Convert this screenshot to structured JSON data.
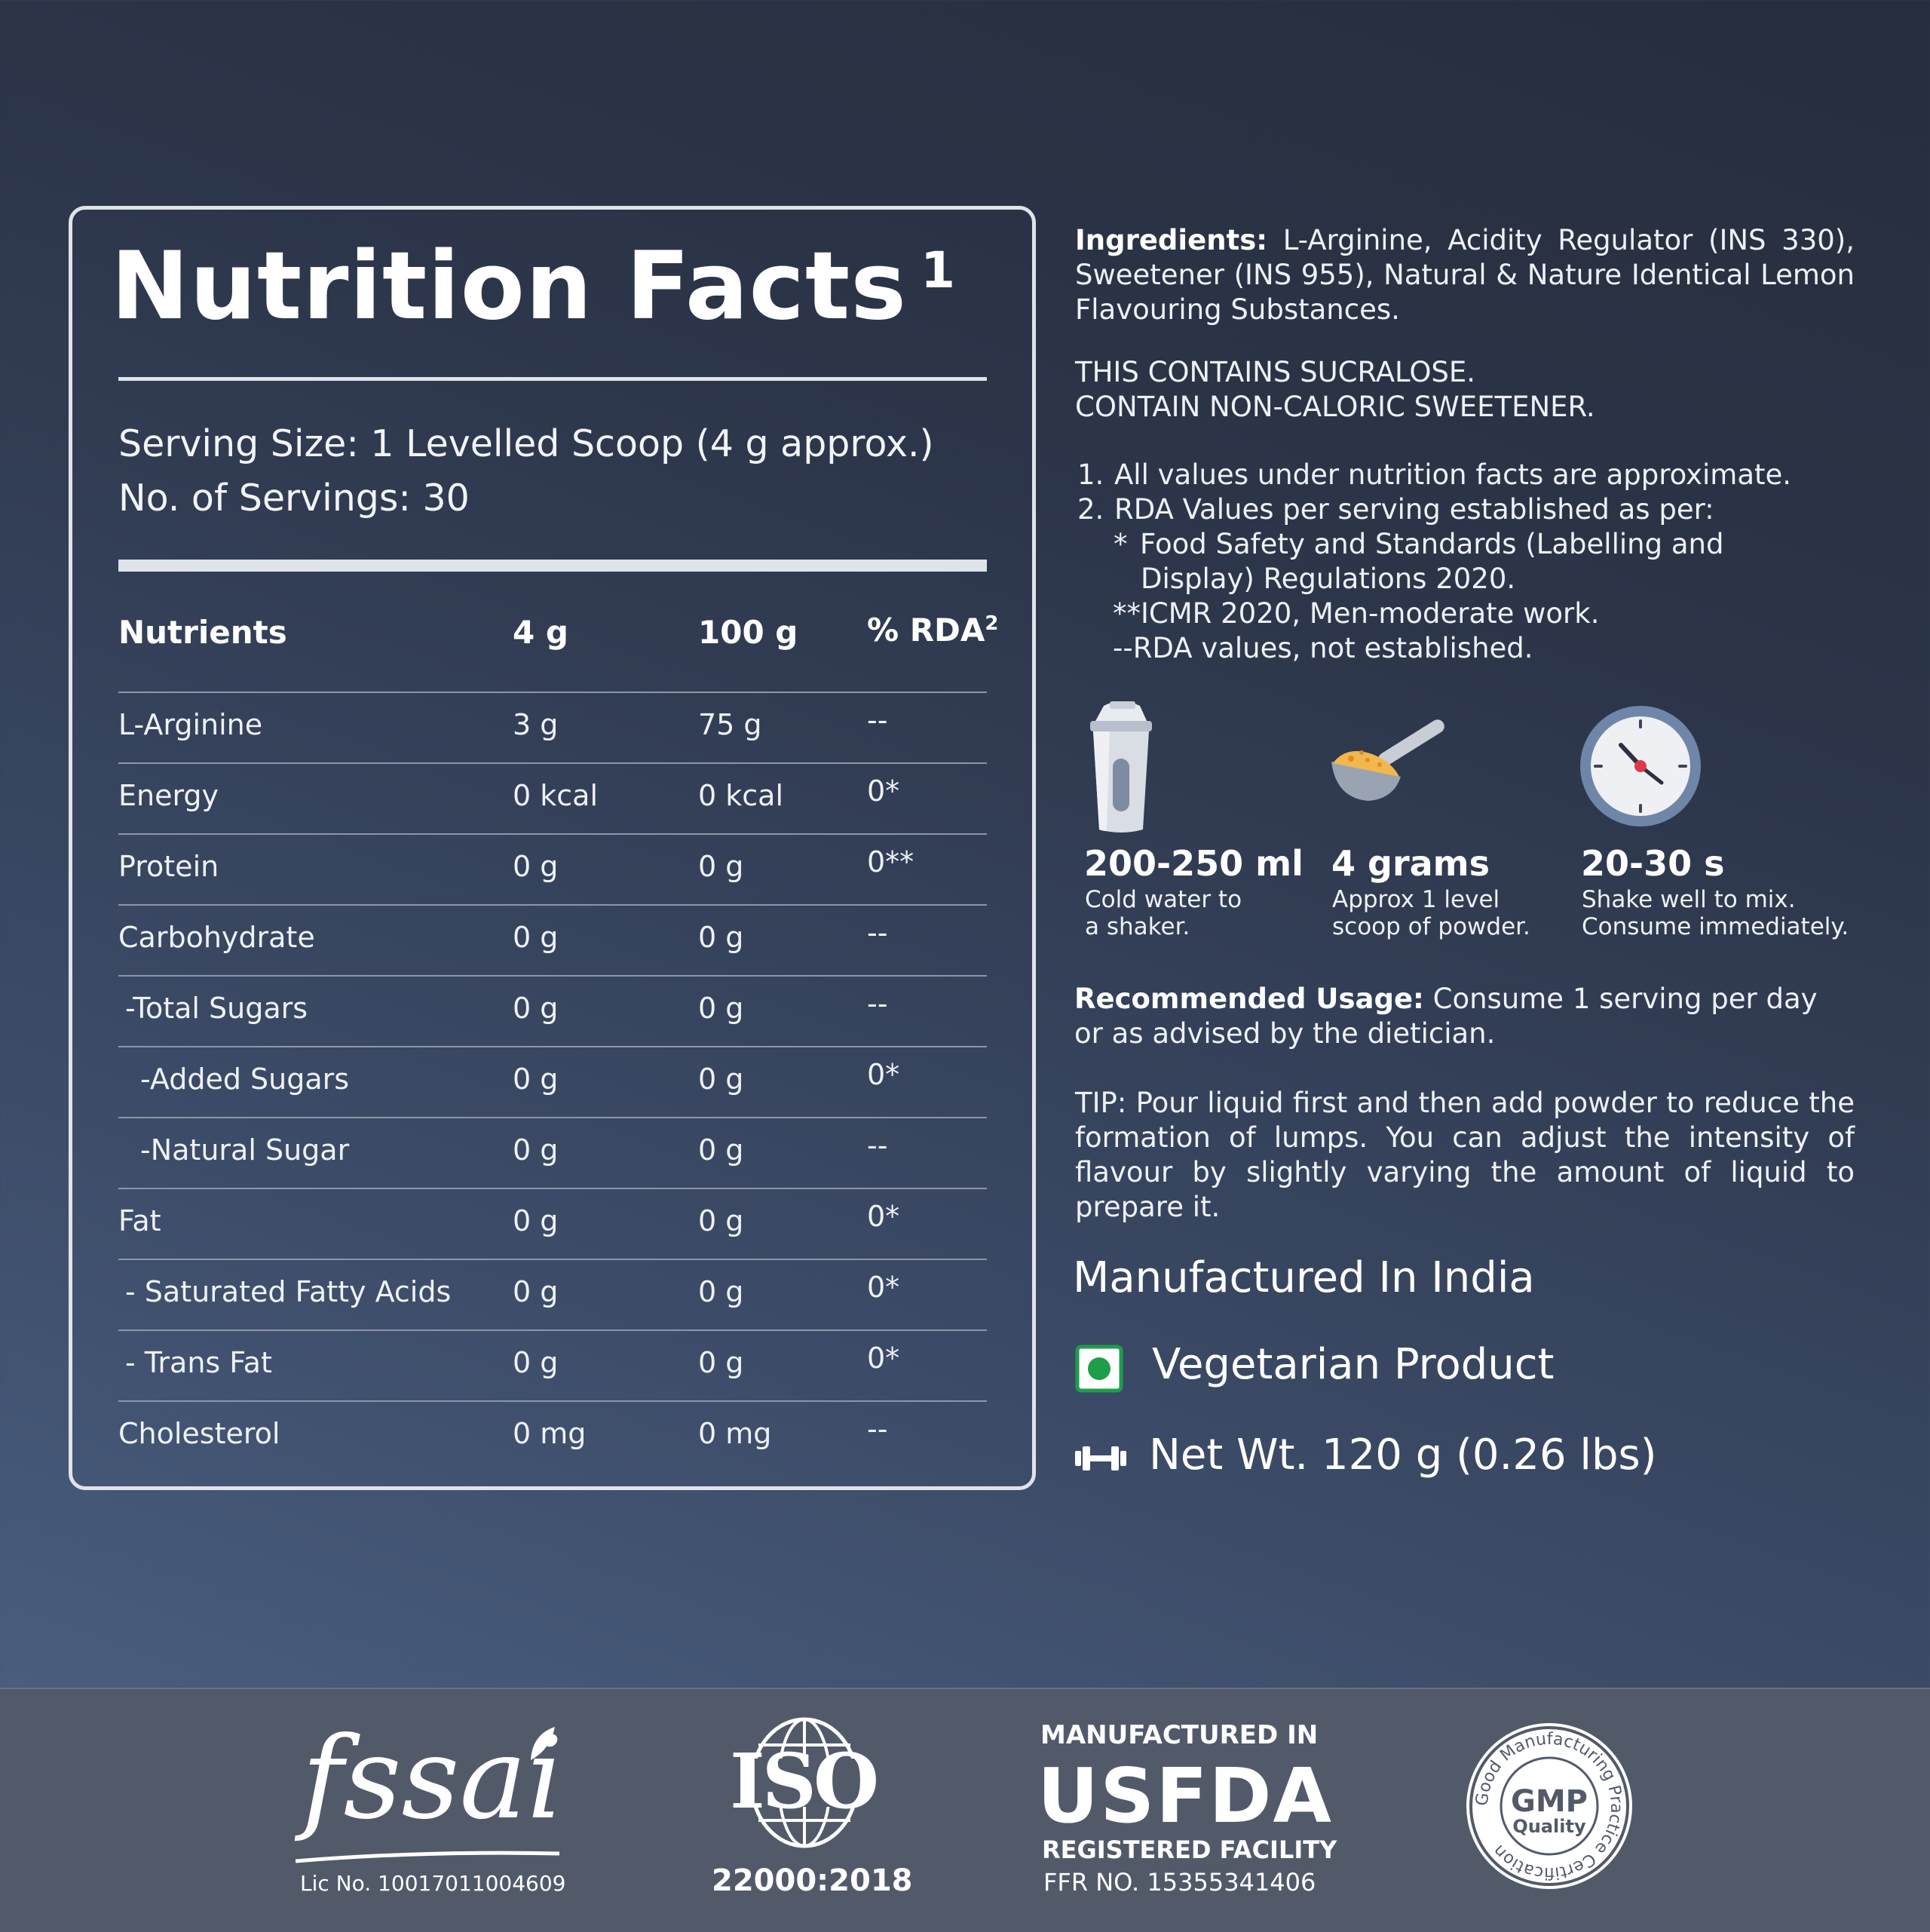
{
  "nutrition": {
    "title": "Nutrition Facts",
    "title_sup": "1",
    "serving_size": "Serving Size: 1 Levelled Scoop (4 g approx.)",
    "servings": "No. of Servings: 30",
    "headers": {
      "nutrient": "Nutrients",
      "per_4g": "4 g",
      "per_100g": "100 g",
      "rda": "% RDA",
      "rda_sup": "2"
    },
    "rows": [
      {
        "name": "L-Arginine",
        "g4": "3 g",
        "g100": "75 g",
        "rda": "--"
      },
      {
        "name": "Energy",
        "g4": "0 kcal",
        "g100": "0 kcal",
        "rda": "0*"
      },
      {
        "name": "Protein",
        "g4": "0 g",
        "g100": "0 g",
        "rda": "0**"
      },
      {
        "name": "Carbohydrate",
        "g4": "0 g",
        "g100": "0 g",
        "rda": "--"
      },
      {
        "name": "-Total Sugars",
        "g4": "0 g",
        "g100": "0 g",
        "rda": "--"
      },
      {
        "name": "-Added Sugars",
        "g4": "0 g",
        "g100": "0 g",
        "rda": "0*"
      },
      {
        "name": "-Natural Sugar",
        "g4": "0 g",
        "g100": "0 g",
        "rda": "--"
      },
      {
        "name": "Fat",
        "g4": "0 g",
        "g100": "0 g",
        "rda": "0*"
      },
      {
        "name": "- Saturated Fatty Acids",
        "g4": "0 g",
        "g100": "0 g",
        "rda": "0*"
      },
      {
        "name": "- Trans Fat",
        "g4": "0 g",
        "g100": "0 g",
        "rda": "0*"
      },
      {
        "name": "Cholesterol",
        "g4": "0 mg",
        "g100": "0 mg",
        "rda": "--"
      }
    ]
  },
  "info": {
    "ingredients_label": "Ingredients:",
    "ingredients_text": "L-Arginine, Acidity Regulator (INS 330), Sweetener (INS 955), Natural & Nature Identical Lemon Flavouring Substances.",
    "warning_1": "THIS CONTAINS SUCRALOSE.",
    "warning_2": "CONTAIN NON-CALORIC SWEETENER.",
    "notes": [
      {
        "num": "1.",
        "text": "All values under nutrition facts  are approximate."
      },
      {
        "num": "2.",
        "text": "RDA Values per serving established as per:"
      }
    ],
    "sub_note_star": "*",
    "sub_note_1a": "Food Safety and Standards (Labelling and",
    "sub_note_1b": "Display) Regulations 2020.",
    "sub_note_2": "**ICMR 2020, Men-moderate work.",
    "sub_note_3": "--RDA values, not established.",
    "steps": [
      {
        "value": "200-250 ml",
        "line1": "Cold water to",
        "line2": "a shaker."
      },
      {
        "value": "4 grams",
        "line1": "Approx 1 level",
        "line2": "scoop of powder."
      },
      {
        "value": "20-30 s",
        "line1": "Shake well to mix.",
        "line2": "Consume immediately."
      }
    ],
    "usage_label": "Recommended Usage:",
    "usage_text": "Consume 1 serving per day or as advised by the dietician.",
    "tip": "TIP: Pour liquid first and then add powder to reduce the formation of lumps. You can adjust the intensity of flavour by slightly varying the amount of liquid to prepare it.",
    "made_in": "Manufactured In India",
    "veg": "Vegetarian Product",
    "net_wt": "Net Wt. 120 g (0.26 lbs)"
  },
  "footer": {
    "fssai_logo": "fssai",
    "fssai_lic": "Lic No. 10017011004609",
    "iso_logo": "ISO",
    "iso_code": "22000:2018",
    "usfda_top": "MANUFACTURED IN",
    "usfda_main": "USFDA",
    "usfda_sub": "REGISTERED FACILITY",
    "usfda_ffr": "FFR NO. 15355341406",
    "gmp_main": "GMP",
    "gmp_sub": "Quality",
    "gmp_ring": "Good Manufacturing Practice Certification"
  },
  "colors": {
    "veg_green": "#1e9e4a",
    "clock_hand_red": "#e0384a",
    "powder_yellow": "#f2b84b"
  }
}
